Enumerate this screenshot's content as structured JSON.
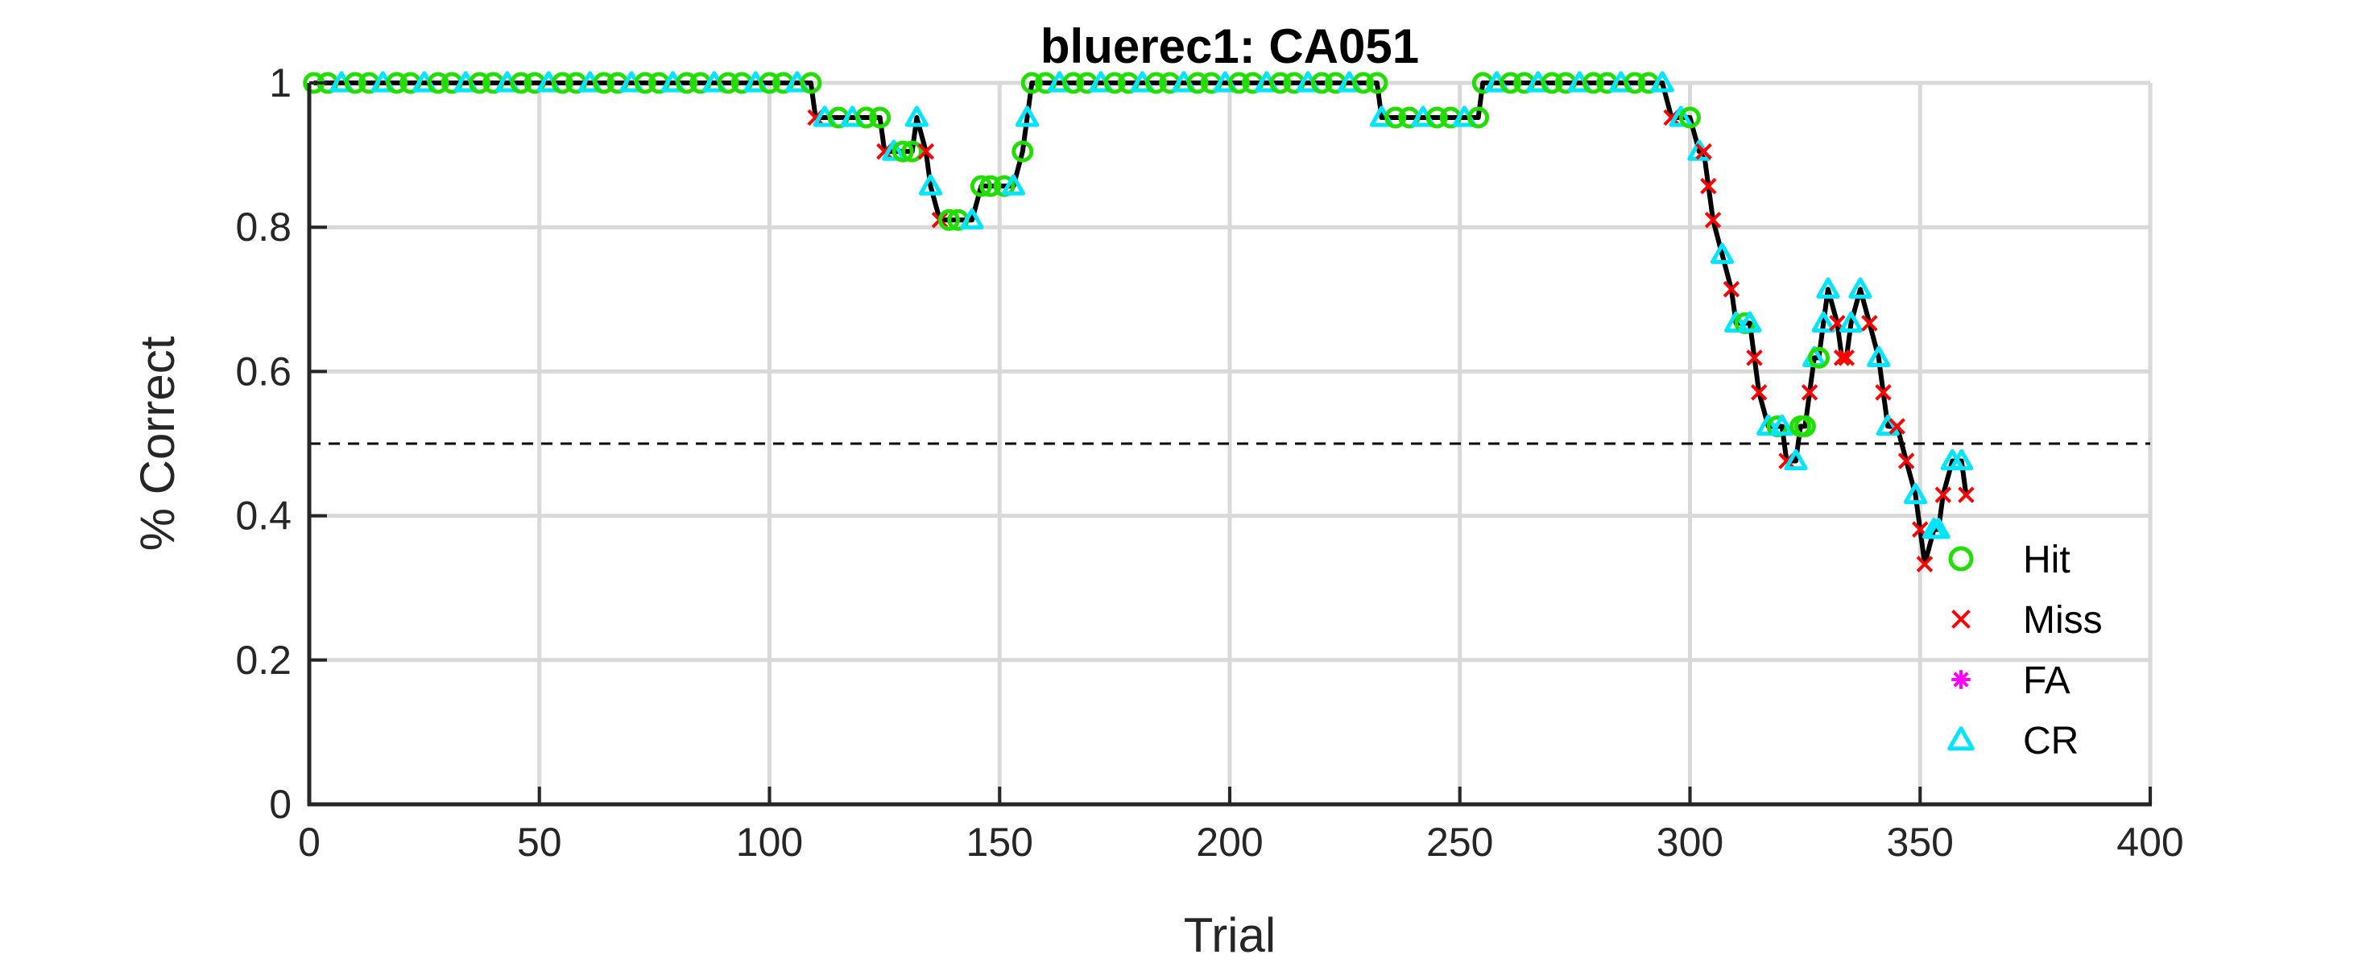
{
  "chart_data": {
    "type": "line",
    "title": "bluerec1: CA051",
    "xlabel": "Trial",
    "ylabel": "% Correct",
    "xlim": [
      0,
      400
    ],
    "ylim": [
      0,
      1
    ],
    "xticks": [
      0,
      50,
      100,
      150,
      200,
      250,
      300,
      350,
      400
    ],
    "yticks": [
      0,
      0.2,
      0.4,
      0.6,
      0.8,
      1
    ],
    "xtick_labels": [
      "0",
      "50",
      "100",
      "150",
      "200",
      "250",
      "300",
      "350",
      "400"
    ],
    "ytick_labels": [
      "0",
      "0.2",
      "0.4",
      "0.6",
      "0.8",
      "1"
    ],
    "grid": true,
    "reference_line": {
      "y": 0.5,
      "style": "dashed",
      "color": "#000000"
    },
    "legend": {
      "placement": "bottom-right"
    },
    "series_style": [
      {
        "name": "Hit",
        "marker": "circle",
        "color": "#22dd00"
      },
      {
        "name": "Miss",
        "marker": "x",
        "color": "#ff0000"
      },
      {
        "name": "FA",
        "marker": "asterisk",
        "color": "#ff00ff"
      },
      {
        "name": "CR",
        "marker": "triangle",
        "color": "#00e5ff"
      }
    ],
    "line_color": "#000000",
    "trace": [
      {
        "x": 1,
        "y": 1,
        "o": "H"
      },
      {
        "x": 4,
        "y": 1,
        "o": "H"
      },
      {
        "x": 7,
        "y": 1,
        "o": "C"
      },
      {
        "x": 10,
        "y": 1,
        "o": "H"
      },
      {
        "x": 13,
        "y": 1,
        "o": "H"
      },
      {
        "x": 16,
        "y": 1,
        "o": "C"
      },
      {
        "x": 19,
        "y": 1,
        "o": "H"
      },
      {
        "x": 22,
        "y": 1,
        "o": "H"
      },
      {
        "x": 25,
        "y": 1,
        "o": "C"
      },
      {
        "x": 28,
        "y": 1,
        "o": "H"
      },
      {
        "x": 31,
        "y": 1,
        "o": "H"
      },
      {
        "x": 34,
        "y": 1,
        "o": "C"
      },
      {
        "x": 37,
        "y": 1,
        "o": "H"
      },
      {
        "x": 40,
        "y": 1,
        "o": "H"
      },
      {
        "x": 43,
        "y": 1,
        "o": "C"
      },
      {
        "x": 46,
        "y": 1,
        "o": "H"
      },
      {
        "x": 49,
        "y": 1,
        "o": "H"
      },
      {
        "x": 52,
        "y": 1,
        "o": "C"
      },
      {
        "x": 55,
        "y": 1,
        "o": "H"
      },
      {
        "x": 58,
        "y": 1,
        "o": "H"
      },
      {
        "x": 61,
        "y": 1,
        "o": "C"
      },
      {
        "x": 64,
        "y": 1,
        "o": "H"
      },
      {
        "x": 67,
        "y": 1,
        "o": "H"
      },
      {
        "x": 70,
        "y": 1,
        "o": "C"
      },
      {
        "x": 73,
        "y": 1,
        "o": "H"
      },
      {
        "x": 76,
        "y": 1,
        "o": "H"
      },
      {
        "x": 79,
        "y": 1,
        "o": "C"
      },
      {
        "x": 82,
        "y": 1,
        "o": "H"
      },
      {
        "x": 85,
        "y": 1,
        "o": "H"
      },
      {
        "x": 88,
        "y": 1,
        "o": "C"
      },
      {
        "x": 91,
        "y": 1,
        "o": "H"
      },
      {
        "x": 94,
        "y": 1,
        "o": "H"
      },
      {
        "x": 97,
        "y": 1,
        "o": "C"
      },
      {
        "x": 100,
        "y": 1,
        "o": "H"
      },
      {
        "x": 103,
        "y": 1,
        "o": "H"
      },
      {
        "x": 106,
        "y": 1,
        "o": "C"
      },
      {
        "x": 109,
        "y": 1,
        "o": "H"
      },
      {
        "x": 110,
        "y": 0.952,
        "o": "M"
      },
      {
        "x": 112,
        "y": 0.952,
        "o": "C"
      },
      {
        "x": 115,
        "y": 0.952,
        "o": "H"
      },
      {
        "x": 118,
        "y": 0.952,
        "o": "C"
      },
      {
        "x": 121,
        "y": 0.952,
        "o": "H"
      },
      {
        "x": 124,
        "y": 0.952,
        "o": "H"
      },
      {
        "x": 125,
        "y": 0.905,
        "o": "M"
      },
      {
        "x": 127,
        "y": 0.905,
        "o": "C"
      },
      {
        "x": 129,
        "y": 0.905,
        "o": "H"
      },
      {
        "x": 131,
        "y": 0.905,
        "o": "H"
      },
      {
        "x": 132,
        "y": 0.952,
        "o": "C"
      },
      {
        "x": 134,
        "y": 0.905,
        "o": "M"
      },
      {
        "x": 135,
        "y": 0.857,
        "o": "C"
      },
      {
        "x": 137,
        "y": 0.81,
        "o": "M"
      },
      {
        "x": 139,
        "y": 0.81,
        "o": "H"
      },
      {
        "x": 141,
        "y": 0.81,
        "o": "H"
      },
      {
        "x": 144,
        "y": 0.81,
        "o": "C"
      },
      {
        "x": 146,
        "y": 0.857,
        "o": "H"
      },
      {
        "x": 148,
        "y": 0.857,
        "o": "H"
      },
      {
        "x": 151,
        "y": 0.857,
        "o": "H"
      },
      {
        "x": 153,
        "y": 0.857,
        "o": "C"
      },
      {
        "x": 155,
        "y": 0.905,
        "o": "H"
      },
      {
        "x": 156,
        "y": 0.952,
        "o": "C"
      },
      {
        "x": 157,
        "y": 1,
        "o": "H"
      },
      {
        "x": 160,
        "y": 1,
        "o": "H"
      },
      {
        "x": 163,
        "y": 1,
        "o": "C"
      },
      {
        "x": 166,
        "y": 1,
        "o": "H"
      },
      {
        "x": 169,
        "y": 1,
        "o": "H"
      },
      {
        "x": 172,
        "y": 1,
        "o": "C"
      },
      {
        "x": 175,
        "y": 1,
        "o": "H"
      },
      {
        "x": 178,
        "y": 1,
        "o": "H"
      },
      {
        "x": 181,
        "y": 1,
        "o": "C"
      },
      {
        "x": 184,
        "y": 1,
        "o": "H"
      },
      {
        "x": 187,
        "y": 1,
        "o": "H"
      },
      {
        "x": 190,
        "y": 1,
        "o": "C"
      },
      {
        "x": 193,
        "y": 1,
        "o": "H"
      },
      {
        "x": 196,
        "y": 1,
        "o": "H"
      },
      {
        "x": 199,
        "y": 1,
        "o": "C"
      },
      {
        "x": 202,
        "y": 1,
        "o": "H"
      },
      {
        "x": 205,
        "y": 1,
        "o": "H"
      },
      {
        "x": 208,
        "y": 1,
        "o": "C"
      },
      {
        "x": 211,
        "y": 1,
        "o": "H"
      },
      {
        "x": 214,
        "y": 1,
        "o": "H"
      },
      {
        "x": 217,
        "y": 1,
        "o": "C"
      },
      {
        "x": 220,
        "y": 1,
        "o": "H"
      },
      {
        "x": 223,
        "y": 1,
        "o": "H"
      },
      {
        "x": 226,
        "y": 1,
        "o": "C"
      },
      {
        "x": 229,
        "y": 1,
        "o": "H"
      },
      {
        "x": 232,
        "y": 1,
        "o": "H"
      },
      {
        "x": 233,
        "y": 0.952,
        "o": "C"
      },
      {
        "x": 236,
        "y": 0.952,
        "o": "H"
      },
      {
        "x": 239,
        "y": 0.952,
        "o": "H"
      },
      {
        "x": 242,
        "y": 0.952,
        "o": "C"
      },
      {
        "x": 245,
        "y": 0.952,
        "o": "H"
      },
      {
        "x": 248,
        "y": 0.952,
        "o": "H"
      },
      {
        "x": 251,
        "y": 0.952,
        "o": "C"
      },
      {
        "x": 254,
        "y": 0.952,
        "o": "H"
      },
      {
        "x": 255,
        "y": 1,
        "o": "H"
      },
      {
        "x": 258,
        "y": 1,
        "o": "C"
      },
      {
        "x": 261,
        "y": 1,
        "o": "H"
      },
      {
        "x": 264,
        "y": 1,
        "o": "H"
      },
      {
        "x": 267,
        "y": 1,
        "o": "C"
      },
      {
        "x": 270,
        "y": 1,
        "o": "H"
      },
      {
        "x": 273,
        "y": 1,
        "o": "H"
      },
      {
        "x": 276,
        "y": 1,
        "o": "C"
      },
      {
        "x": 279,
        "y": 1,
        "o": "H"
      },
      {
        "x": 282,
        "y": 1,
        "o": "H"
      },
      {
        "x": 285,
        "y": 1,
        "o": "C"
      },
      {
        "x": 288,
        "y": 1,
        "o": "H"
      },
      {
        "x": 291,
        "y": 1,
        "o": "H"
      },
      {
        "x": 294,
        "y": 1,
        "o": "C"
      },
      {
        "x": 296,
        "y": 0.952,
        "o": "M"
      },
      {
        "x": 298,
        "y": 0.952,
        "o": "C"
      },
      {
        "x": 300,
        "y": 0.952,
        "o": "H"
      },
      {
        "x": 302,
        "y": 0.905,
        "o": "C"
      },
      {
        "x": 303,
        "y": 0.905,
        "o": "M"
      },
      {
        "x": 304,
        "y": 0.857,
        "o": "M"
      },
      {
        "x": 305,
        "y": 0.81,
        "o": "M"
      },
      {
        "x": 307,
        "y": 0.762,
        "o": "C"
      },
      {
        "x": 309,
        "y": 0.714,
        "o": "M"
      },
      {
        "x": 310,
        "y": 0.667,
        "o": "C"
      },
      {
        "x": 312,
        "y": 0.667,
        "o": "H"
      },
      {
        "x": 313,
        "y": 0.667,
        "o": "C"
      },
      {
        "x": 314,
        "y": 0.619,
        "o": "M"
      },
      {
        "x": 315,
        "y": 0.571,
        "o": "M"
      },
      {
        "x": 317,
        "y": 0.524,
        "o": "C"
      },
      {
        "x": 319,
        "y": 0.524,
        "o": "H"
      },
      {
        "x": 320,
        "y": 0.524,
        "o": "C"
      },
      {
        "x": 321,
        "y": 0.476,
        "o": "M"
      },
      {
        "x": 323,
        "y": 0.476,
        "o": "C"
      },
      {
        "x": 324,
        "y": 0.524,
        "o": "H"
      },
      {
        "x": 325,
        "y": 0.524,
        "o": "H"
      },
      {
        "x": 326,
        "y": 0.571,
        "o": "M"
      },
      {
        "x": 327,
        "y": 0.619,
        "o": "C"
      },
      {
        "x": 328,
        "y": 0.619,
        "o": "H"
      },
      {
        "x": 329,
        "y": 0.667,
        "o": "C"
      },
      {
        "x": 330,
        "y": 0.714,
        "o": "C"
      },
      {
        "x": 332,
        "y": 0.667,
        "o": "M"
      },
      {
        "x": 333,
        "y": 0.619,
        "o": "M"
      },
      {
        "x": 334,
        "y": 0.619,
        "o": "M"
      },
      {
        "x": 335,
        "y": 0.667,
        "o": "C"
      },
      {
        "x": 337,
        "y": 0.714,
        "o": "C"
      },
      {
        "x": 339,
        "y": 0.667,
        "o": "M"
      },
      {
        "x": 341,
        "y": 0.619,
        "o": "C"
      },
      {
        "x": 342,
        "y": 0.571,
        "o": "M"
      },
      {
        "x": 343,
        "y": 0.524,
        "o": "C"
      },
      {
        "x": 345,
        "y": 0.524,
        "o": "M"
      },
      {
        "x": 347,
        "y": 0.476,
        "o": "M"
      },
      {
        "x": 349,
        "y": 0.429,
        "o": "C"
      },
      {
        "x": 350,
        "y": 0.381,
        "o": "M"
      },
      {
        "x": 351,
        "y": 0.333,
        "o": "M"
      },
      {
        "x": 353,
        "y": 0.381,
        "o": "C"
      },
      {
        "x": 354,
        "y": 0.381,
        "o": "C"
      },
      {
        "x": 355,
        "y": 0.429,
        "o": "M"
      },
      {
        "x": 357,
        "y": 0.476,
        "o": "C"
      },
      {
        "x": 359,
        "y": 0.476,
        "o": "C"
      },
      {
        "x": 360,
        "y": 0.429,
        "o": "M"
      }
    ]
  }
}
